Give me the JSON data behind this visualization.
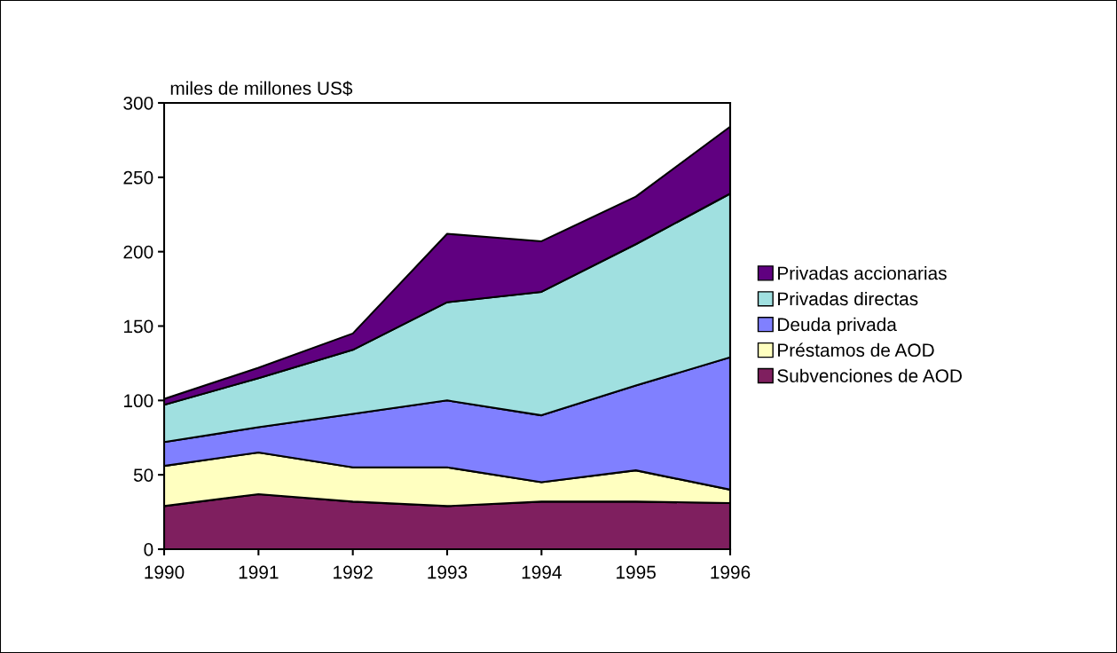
{
  "chart_data": {
    "type": "area",
    "stacked": true,
    "ylabel": "miles de millones US$",
    "categories": [
      "1990",
      "1991",
      "1992",
      "1993",
      "1994",
      "1995",
      "1996"
    ],
    "ylim": [
      0,
      300
    ],
    "yticks": [
      0,
      50,
      100,
      150,
      200,
      250,
      300
    ],
    "grid": false,
    "legend": "right",
    "series": [
      {
        "name": "Subvenciones de AOD",
        "color": "#7f1f5f",
        "values": [
          29,
          37,
          32,
          29,
          32,
          32,
          31
        ]
      },
      {
        "name": "Préstamos de AOD",
        "color": "#ffffc0",
        "values": [
          27,
          28,
          23,
          26,
          13,
          21,
          9
        ]
      },
      {
        "name": "Deuda privada",
        "color": "#8080ff",
        "values": [
          16,
          17,
          36,
          45,
          45,
          57,
          89
        ]
      },
      {
        "name": "Privadas directas",
        "color": "#a0e0e0",
        "values": [
          25,
          33,
          43,
          66,
          83,
          95,
          110
        ]
      },
      {
        "name": "Privadas accionarias",
        "color": "#600080",
        "values": [
          4,
          7,
          11,
          46,
          34,
          32,
          45
        ]
      }
    ]
  }
}
